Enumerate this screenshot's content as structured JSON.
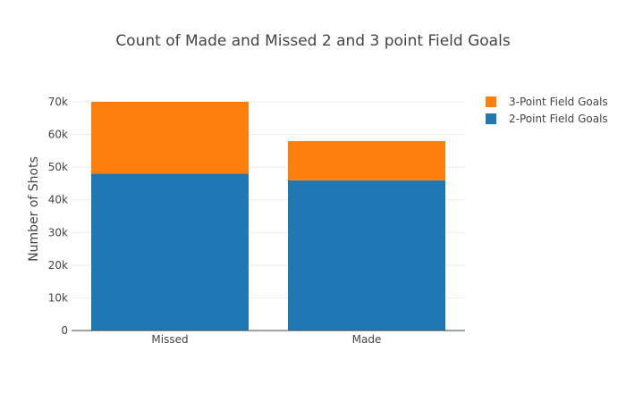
{
  "chart_data": {
    "type": "bar",
    "stacked": true,
    "title": "Count of Made and Missed 2 and 3 point Field Goals",
    "xlabel": "",
    "ylabel": "Number of Shots",
    "categories": [
      "Missed",
      "Made"
    ],
    "series": [
      {
        "name": "2-Point Field Goals",
        "values": [
          48000,
          46000
        ],
        "color": "#1f77b4"
      },
      {
        "name": "3-Point Field Goals",
        "values": [
          22000,
          12000
        ],
        "color": "#ff7f0e"
      }
    ],
    "ylim": [
      0,
      70000
    ],
    "yticks": [
      0,
      10000,
      20000,
      30000,
      40000,
      50000,
      60000,
      70000
    ],
    "ytick_labels": [
      "0",
      "10k",
      "20k",
      "30k",
      "40k",
      "50k",
      "60k",
      "70k"
    ],
    "grid": true,
    "legend_position": "top-right",
    "legend_order": [
      "3-Point Field Goals",
      "2-Point Field Goals"
    ]
  }
}
